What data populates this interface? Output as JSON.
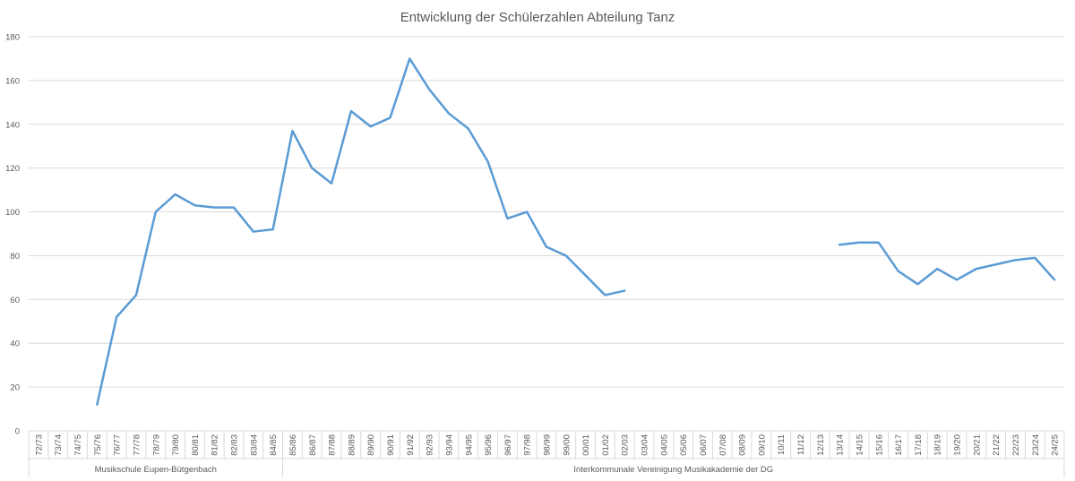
{
  "chart_data": {
    "type": "line",
    "title": "Entwicklung der Schülerzahlen Abteilung Tanz",
    "xlabel": "",
    "ylabel": "",
    "ylim": [
      0,
      180
    ],
    "yticks": [
      0,
      20,
      40,
      60,
      80,
      100,
      120,
      140,
      160,
      180
    ],
    "grid": true,
    "legend": "none",
    "color": "#5B9BD5",
    "categories": [
      "72/73",
      "73/74",
      "74/75",
      "75/76",
      "76/77",
      "77/78",
      "78/79",
      "79/80",
      "80/81",
      "81/82",
      "82/83",
      "83/84",
      "84/85",
      "85/86",
      "86/87",
      "87/88",
      "88/89",
      "89/90",
      "90/91",
      "91/92",
      "92/93",
      "93/94",
      "94/95",
      "95/96",
      "96/97",
      "97/98",
      "98/99",
      "99/00",
      "00/01",
      "01/02",
      "02/03",
      "03/04",
      "04/05",
      "05/06",
      "06/07",
      "07/08",
      "08/09",
      "09/10",
      "10/11",
      "11/12",
      "12/13",
      "13/14",
      "14/15",
      "15/16",
      "16/17",
      "17/18",
      "18/19",
      "19/20",
      "20/21",
      "21/22",
      "22/23",
      "23/24",
      "24/25"
    ],
    "series": [
      {
        "values": [
          null,
          null,
          null,
          12,
          52,
          62,
          100,
          108,
          103,
          102,
          102,
          91,
          92,
          137,
          120,
          113,
          146,
          139,
          143,
          170,
          156,
          145,
          138,
          123,
          97,
          100,
          84,
          80,
          71,
          62,
          64,
          null,
          null,
          null,
          null,
          null,
          null,
          null,
          null,
          null,
          null,
          85,
          86,
          86,
          73,
          67,
          74,
          69,
          74,
          76,
          78,
          79,
          69
        ]
      }
    ],
    "groups": [
      {
        "label": "Musikschule Eupen-Bütgenbach",
        "from": 0,
        "to": 12
      },
      {
        "label": "Interkommunale Vereinigung Musikakademie der DG",
        "from": 13,
        "to": 52
      }
    ]
  }
}
